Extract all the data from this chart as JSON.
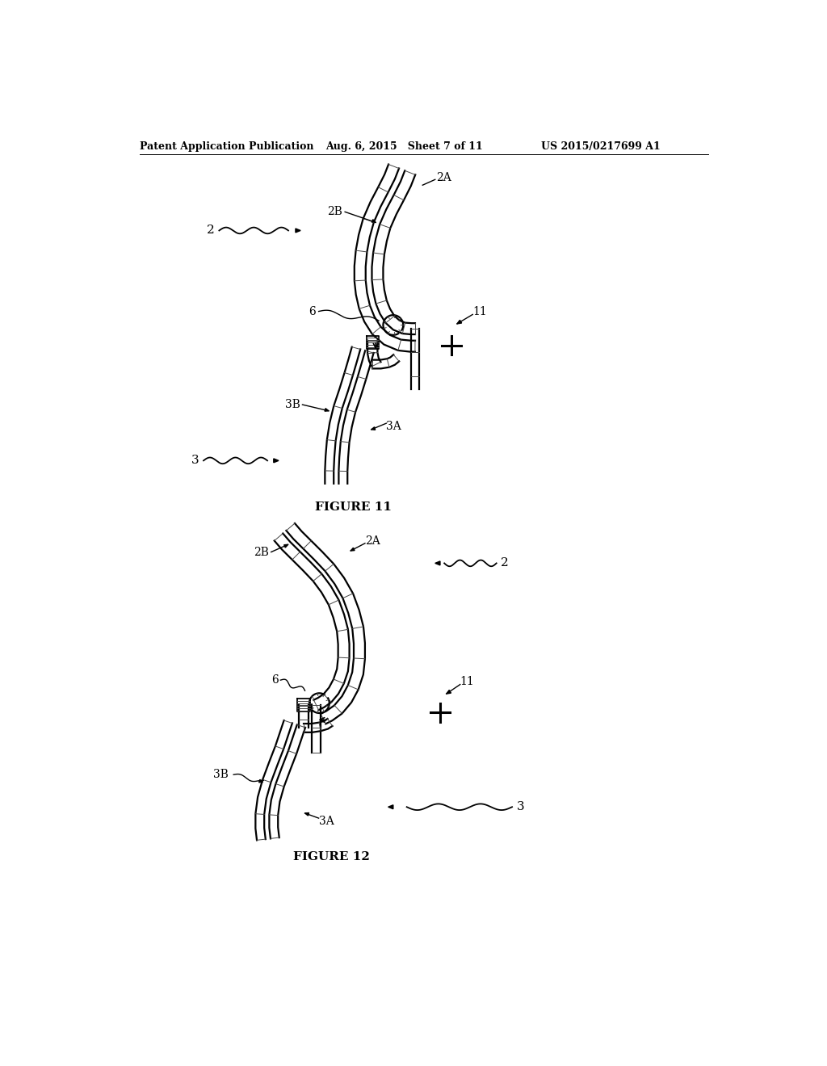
{
  "background_color": "#ffffff",
  "header_left": "Patent Application Publication",
  "header_mid": "Aug. 6, 2015   Sheet 7 of 11",
  "header_right": "US 2015/0217699 A1",
  "fig11_caption": "FIGURE 11",
  "fig12_caption": "FIGURE 12",
  "line_color": "#000000",
  "hatch_color": "#444444",
  "line_width": 1.6,
  "hatch_lw": 0.7
}
